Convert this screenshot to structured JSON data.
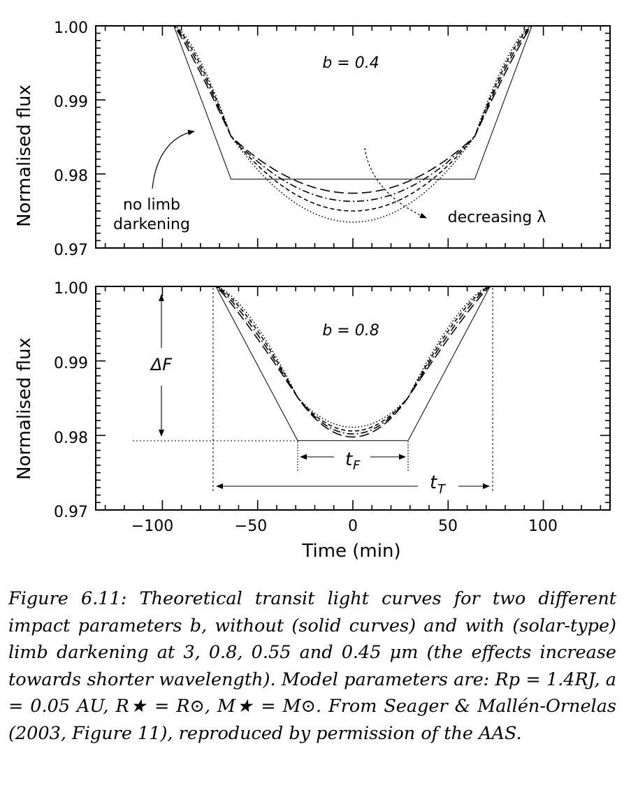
{
  "figure": {
    "xlabel": "Time (min)",
    "ylabel": "Normalised flux",
    "x_ticks": [
      "−100",
      "−50",
      "0",
      "50",
      "100"
    ],
    "y_ticks": [
      "1.00",
      "0.99",
      "0.98",
      "0.97"
    ]
  },
  "chart_data": [
    {
      "type": "line",
      "panel": "top",
      "annotation_b": "b = 0.4",
      "note_no_limb": [
        "no limb",
        "darkening"
      ],
      "note_decreasing": "decreasing λ",
      "xlabel": "",
      "ylabel": "Normalised flux",
      "xlim": [
        -135,
        135
      ],
      "ylim": [
        0.97,
        1.0
      ],
      "grid": false,
      "transit": {
        "t_total_min": 94,
        "t_flat_min": 64,
        "depth": 0.0207
      },
      "series": [
        {
          "style": "solid",
          "center_flux": 0.9793
        },
        {
          "style": "long-dash",
          "center_flux": 0.9774
        },
        {
          "style": "dash-dot",
          "center_flux": 0.9763
        },
        {
          "style": "short-dash",
          "center_flux": 0.975
        },
        {
          "style": "dotted",
          "center_flux": 0.9735
        }
      ]
    },
    {
      "type": "line",
      "panel": "bottom",
      "annotation_b": "b = 0.8",
      "label_deltaF": "ΔF",
      "label_tF": "t",
      "label_tF_sub": "F",
      "label_tT": "t",
      "label_tT_sub": "T",
      "xlabel": "Time (min)",
      "ylabel": "Normalised flux",
      "xlim": [
        -135,
        135
      ],
      "ylim": [
        0.97,
        1.0
      ],
      "grid": false,
      "transit": {
        "t_total_min": 72,
        "t_flat_min": 29,
        "depth": 0.0207
      },
      "series": [
        {
          "style": "solid",
          "center_flux": 0.9793
        },
        {
          "style": "long-dash",
          "center_flux": 0.9798
        },
        {
          "style": "dash-dot",
          "center_flux": 0.9802
        },
        {
          "style": "short-dash",
          "center_flux": 0.9806
        },
        {
          "style": "dotted",
          "center_flux": 0.9811
        }
      ]
    }
  ],
  "caption": {
    "label": "Figure 6.11:",
    "text1": "Theoretical transit light curves for two different impact parameters",
    "b": "b",
    "text2": ", without (solid curves) and with (solar-type) limb darkening at 3, 0.8, 0.55 and 0.45 μm (the effects increase towards shorter wavelength). Model parameters are:",
    "params": "Rp = 1.4RJ, a = 0.05 AU, R★ = R⊙, M★ = M⊙.",
    "text3": "From Seager & Mallén-Ornelas (2003, Figure 11), reproduced by permission of the AAS."
  }
}
